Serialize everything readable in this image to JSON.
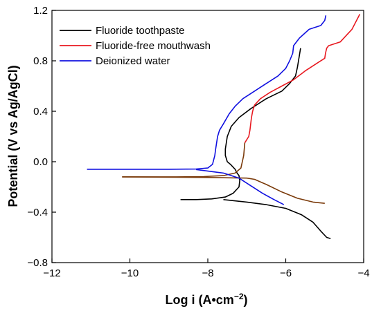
{
  "chart_data": {
    "type": "line",
    "title": "",
    "xlabel": "Log i (A•cm",
    "xlabel_sup": "−2",
    "xlabel_close": ")",
    "ylabel": "Potential (V vs Ag/AgCl)",
    "xlim": [
      -12,
      -4
    ],
    "ylim": [
      -0.8,
      1.2
    ],
    "xticks": [
      -12,
      -10,
      -8,
      -6,
      -4
    ],
    "xtick_labels": [
      "−12",
      "−10",
      "−8",
      "−6",
      "−4"
    ],
    "yticks": [
      -0.8,
      -0.4,
      0.0,
      0.4,
      0.8,
      1.2
    ],
    "ytick_labels": [
      "−0.8",
      "−0.4",
      "0.0",
      "0.4",
      "0.8",
      "1.2"
    ],
    "grid": false,
    "legend_position": "top-left",
    "series": [
      {
        "name": "Fluoride toothpaste",
        "color": "#000000",
        "x": [
          -8.7,
          -8.3,
          -7.9,
          -7.55,
          -7.35,
          -7.2,
          -7.18,
          -7.2,
          -7.25,
          -7.3,
          -7.42,
          -7.5,
          -7.55,
          -7.55,
          -7.5,
          -7.4,
          -7.2,
          -6.9,
          -6.5,
          -6.1,
          -5.9,
          -5.75,
          -5.7,
          -5.62
        ],
        "y": [
          -0.3,
          -0.3,
          -0.295,
          -0.28,
          -0.25,
          -0.2,
          -0.15,
          -0.11,
          -0.09,
          -0.06,
          -0.02,
          0.0,
          0.05,
          0.1,
          0.2,
          0.28,
          0.35,
          0.42,
          0.5,
          0.56,
          0.62,
          0.68,
          0.75,
          0.9
        ]
      },
      {
        "name": "",
        "color": "#000000",
        "x": [
          -7.6,
          -7.0,
          -6.5,
          -6.0,
          -5.6,
          -5.3,
          -5.1,
          -4.95,
          -4.85
        ],
        "y": [
          -0.3,
          -0.32,
          -0.34,
          -0.37,
          -0.42,
          -0.48,
          -0.55,
          -0.6,
          -0.61
        ]
      },
      {
        "name": "Fluoride-free mouthwash",
        "color": "#e8181f",
        "x": [
          -7.05,
          -6.95,
          -6.92,
          -6.9,
          -6.88,
          -6.85,
          -6.8,
          -6.65,
          -6.4,
          -6.1,
          -5.8,
          -5.5,
          -5.2,
          -5.0,
          -4.98,
          -4.95,
          -4.9,
          -4.6,
          -4.3,
          -4.1
        ],
        "y": [
          0.15,
          0.2,
          0.25,
          0.3,
          0.35,
          0.4,
          0.45,
          0.5,
          0.55,
          0.6,
          0.65,
          0.72,
          0.78,
          0.82,
          0.86,
          0.9,
          0.92,
          0.95,
          1.05,
          1.17
        ]
      },
      {
        "name": "",
        "color": "#7a3a0a",
        "x": [
          -10.2,
          -9.5,
          -8.8,
          -8.1,
          -7.6,
          -7.3,
          -7.15,
          -7.08,
          -7.05
        ],
        "y": [
          -0.12,
          -0.12,
          -0.12,
          -0.118,
          -0.11,
          -0.09,
          -0.05,
          0.05,
          0.15
        ]
      },
      {
        "name": "",
        "color": "#7a3a0a",
        "x": [
          -10.2,
          -9.2,
          -8.0,
          -7.0,
          -6.8,
          -6.5,
          -6.1,
          -5.7,
          -5.3,
          -5.0
        ],
        "y": [
          -0.12,
          -0.122,
          -0.125,
          -0.13,
          -0.14,
          -0.18,
          -0.24,
          -0.29,
          -0.32,
          -0.33
        ]
      },
      {
        "name": "Deionized water",
        "color": "#1010e0",
        "x": [
          -11.1,
          -10.0,
          -9.0,
          -8.3,
          -8.0,
          -7.88,
          -7.82,
          -7.8,
          -7.75,
          -7.7,
          -7.6,
          -7.45,
          -7.3,
          -7.1,
          -6.8,
          -6.5,
          -6.2,
          -6.0,
          -5.9,
          -5.82,
          -5.8,
          -5.65,
          -5.4,
          -5.1,
          -5.0,
          -4.97
        ],
        "y": [
          -0.06,
          -0.06,
          -0.06,
          -0.058,
          -0.05,
          -0.02,
          0.05,
          0.1,
          0.2,
          0.25,
          0.3,
          0.38,
          0.44,
          0.5,
          0.56,
          0.62,
          0.68,
          0.74,
          0.8,
          0.86,
          0.92,
          0.98,
          1.05,
          1.08,
          1.12,
          1.16
        ]
      },
      {
        "name": "",
        "color": "#1010e0",
        "x": [
          -8.3,
          -7.6,
          -7.2,
          -6.9,
          -6.6,
          -6.3,
          -6.05
        ],
        "y": [
          -0.062,
          -0.09,
          -0.13,
          -0.19,
          -0.25,
          -0.3,
          -0.34
        ]
      }
    ]
  }
}
